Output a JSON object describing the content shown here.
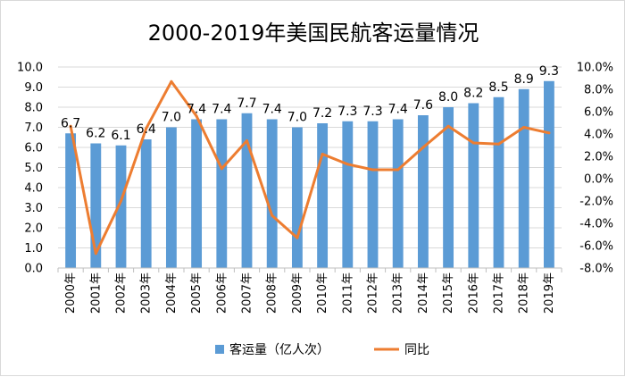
{
  "chart_data": {
    "type": "bar",
    "title": "2000-2019年美国民航客运量情况",
    "categories": [
      "2000年",
      "2001年",
      "2002年",
      "2003年",
      "2004年",
      "2005年",
      "2006年",
      "2007年",
      "2008年",
      "2009年",
      "2010年",
      "2011年",
      "2012年",
      "2013年",
      "2014年",
      "2015年",
      "2016年",
      "2017年",
      "2018年",
      "2019年"
    ],
    "series": [
      {
        "name": "客运量（亿人次）",
        "kind": "bar",
        "axis": "left",
        "color": "#5B9BD5",
        "values": [
          6.7,
          6.2,
          6.1,
          6.4,
          7.0,
          7.4,
          7.4,
          7.7,
          7.4,
          7.0,
          7.2,
          7.3,
          7.3,
          7.4,
          7.6,
          8.0,
          8.2,
          8.5,
          8.9,
          9.3
        ],
        "labels": [
          "6.7",
          "6.2",
          "6.1",
          "6.4",
          "7.0",
          "7.4",
          "7.4",
          "7.7",
          "7.4",
          "7.0",
          "7.2",
          "7.3",
          "7.3",
          "7.4",
          "7.6",
          "8.0",
          "8.2",
          "8.5",
          "8.9",
          "9.3"
        ]
      },
      {
        "name": "同比",
        "kind": "line",
        "axis": "right",
        "color": "#ED7D31",
        "values": [
          4.7,
          -6.7,
          -2.0,
          4.5,
          8.7,
          5.6,
          0.9,
          3.4,
          -3.3,
          -5.3,
          2.2,
          1.3,
          0.8,
          0.8,
          2.8,
          4.7,
          3.2,
          3.1,
          4.6,
          4.1
        ]
      }
    ],
    "y_left": {
      "min": 0,
      "max": 10,
      "step": 1,
      "ticks": [
        "0.0",
        "1.0",
        "2.0",
        "3.0",
        "4.0",
        "5.0",
        "6.0",
        "7.0",
        "8.0",
        "9.0",
        "10.0"
      ]
    },
    "y_right": {
      "min": -8,
      "max": 10,
      "step": 2,
      "ticks": [
        "-8.0%",
        "-6.0%",
        "-4.0%",
        "-2.0%",
        "0.0%",
        "2.0%",
        "4.0%",
        "6.0%",
        "8.0%",
        "10.0%"
      ]
    },
    "grid": true,
    "legend_position": "bottom"
  }
}
